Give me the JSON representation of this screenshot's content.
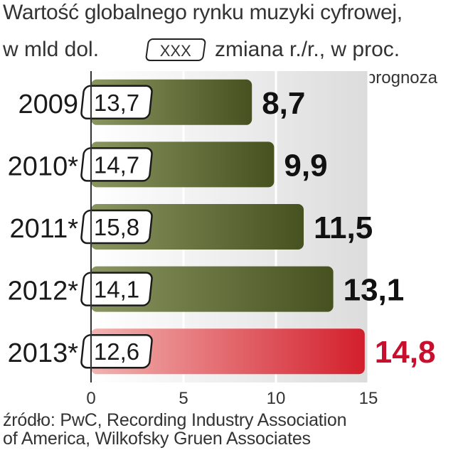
{
  "title": "Wartość globalnego rynku muzyki cyfrowej,",
  "unit_label": "w mld dol.",
  "legend": {
    "box_text": "XXX",
    "label": "zmiana r./r., w proc."
  },
  "note": "*prognoza",
  "source": {
    "line1": "źródło: PwC, Recording Industry Association",
    "line2": "of America, Wilkofsky Gruen Associates"
  },
  "colors": {
    "actual_bar": "#55622a",
    "forecast_bar": "#d9262e",
    "forecast_value": "#c8102e",
    "value_text": "#111111"
  },
  "chart_data": {
    "type": "bar",
    "orientation": "horizontal",
    "categories": [
      "2009",
      "2010*",
      "2011*",
      "2012*",
      "2013*"
    ],
    "values": [
      8.7,
      9.9,
      11.5,
      13.1,
      14.8
    ],
    "value_labels": [
      "8,7",
      "9,9",
      "11,5",
      "13,1",
      "14,8"
    ],
    "change_labels": [
      "13,7",
      "14,7",
      "15,8",
      "14,1",
      "12,6"
    ],
    "highlight_index": 4,
    "xlim": [
      0,
      15
    ],
    "xticks": [
      0,
      5,
      10,
      15
    ],
    "xtick_labels": [
      "0",
      "5",
      "10",
      "15"
    ],
    "grid": true
  }
}
